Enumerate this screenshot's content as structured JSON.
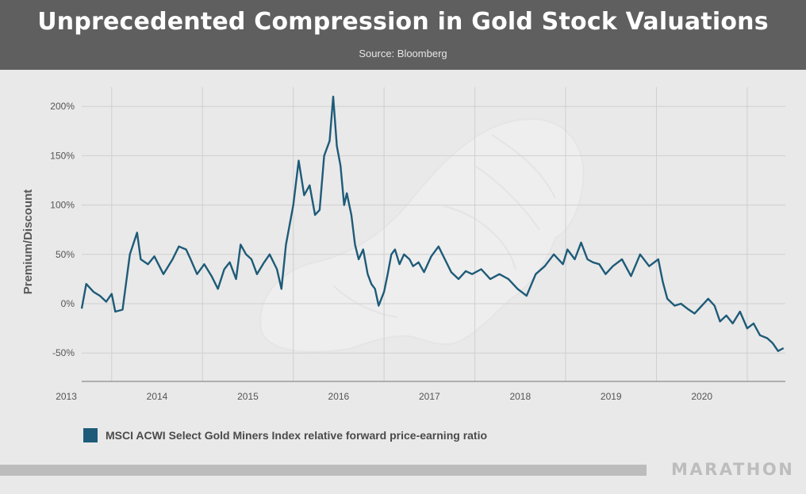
{
  "header": {
    "title": "Unprecedented Compression in Gold Stock Valuations",
    "source": "Source: Bloomberg"
  },
  "legend": {
    "label": "MSCI ACWI Select Gold Miners Index relative forward price-earning ratio"
  },
  "brand": {
    "name": "MARATHON"
  },
  "colors": {
    "series": "#1e5b78",
    "header_bg": "#5f5f5f",
    "plot_bg": "#e9e9e9",
    "grid": "#cfcfcf"
  },
  "chart_data": {
    "type": "line",
    "title": "Unprecedented Compression in Gold Stock Valuations",
    "subtitle": "Source: Bloomberg",
    "ylabel": "Premium/Discount",
    "xlabel": "",
    "ylim": [
      -75,
      210
    ],
    "xlim": [
      2012.85,
      2020.6
    ],
    "y_ticks": [
      -50,
      0,
      50,
      100,
      150,
      200
    ],
    "y_tick_labels": [
      "-50%",
      "0%",
      "50%",
      "100%",
      "150%",
      "200%"
    ],
    "x_ticks": [
      2013,
      2014,
      2015,
      2016,
      2017,
      2018,
      2019,
      2020
    ],
    "x_tick_labels": [
      "2013",
      "2014",
      "2015",
      "2016",
      "2017",
      "2018",
      "2019",
      "2020"
    ],
    "grid": true,
    "legend_position": "bottom-left",
    "series": [
      {
        "name": "MSCI ACWI Select Gold Miners Index relative forward price-earning ratio",
        "x": [
          2012.85,
          2012.9,
          2012.98,
          2013.05,
          2013.12,
          2013.18,
          2013.22,
          2013.3,
          2013.38,
          2013.46,
          2013.5,
          2013.58,
          2013.65,
          2013.75,
          2013.85,
          2013.92,
          2014.0,
          2014.05,
          2014.12,
          2014.2,
          2014.28,
          2014.35,
          2014.42,
          2014.48,
          2014.55,
          2014.6,
          2014.66,
          2014.72,
          2014.78,
          2014.86,
          2014.92,
          2015.0,
          2015.05,
          2015.1,
          2015.18,
          2015.24,
          2015.3,
          2015.36,
          2015.42,
          2015.47,
          2015.52,
          2015.58,
          2015.62,
          2015.66,
          2015.7,
          2015.74,
          2015.77,
          2015.82,
          2015.86,
          2015.9,
          2015.95,
          2016.0,
          2016.04,
          2016.08,
          2016.12,
          2016.18,
          2016.22,
          2016.26,
          2016.3,
          2016.35,
          2016.4,
          2016.46,
          2016.5,
          2016.56,
          2016.62,
          2016.7,
          2016.78,
          2016.85,
          2016.92,
          2017.0,
          2017.08,
          2017.15,
          2017.25,
          2017.35,
          2017.45,
          2017.55,
          2017.65,
          2017.75,
          2017.85,
          2017.95,
          2018.05,
          2018.15,
          2018.2,
          2018.28,
          2018.35,
          2018.42,
          2018.48,
          2018.55,
          2018.62,
          2018.7,
          2018.8,
          2018.9,
          2019.0,
          2019.1,
          2019.2,
          2019.25,
          2019.3,
          2019.38,
          2019.45,
          2019.52,
          2019.6,
          2019.68,
          2019.75,
          2019.82,
          2019.88,
          2019.95,
          2020.02,
          2020.1,
          2020.18,
          2020.25,
          2020.32,
          2020.4,
          2020.46,
          2020.52,
          2020.58
        ],
        "y": [
          -5,
          20,
          12,
          8,
          2,
          10,
          -8,
          -6,
          50,
          72,
          45,
          40,
          48,
          30,
          45,
          58,
          55,
          45,
          30,
          40,
          28,
          15,
          35,
          42,
          25,
          60,
          50,
          45,
          30,
          42,
          50,
          35,
          15,
          60,
          100,
          145,
          110,
          120,
          90,
          95,
          150,
          165,
          210,
          160,
          140,
          100,
          112,
          90,
          60,
          45,
          55,
          30,
          20,
          15,
          -2,
          12,
          30,
          50,
          55,
          40,
          50,
          45,
          38,
          42,
          32,
          48,
          58,
          45,
          32,
          25,
          33,
          30,
          35,
          25,
          30,
          25,
          15,
          8,
          30,
          38,
          50,
          40,
          55,
          45,
          62,
          45,
          42,
          40,
          30,
          38,
          45,
          28,
          50,
          38,
          45,
          22,
          5,
          -2,
          0,
          -5,
          -10,
          -2,
          5,
          -2,
          -18,
          -12,
          -20,
          -8,
          -25,
          -20,
          -32,
          -35,
          -40,
          -48,
          -45
        ]
      }
    ]
  }
}
